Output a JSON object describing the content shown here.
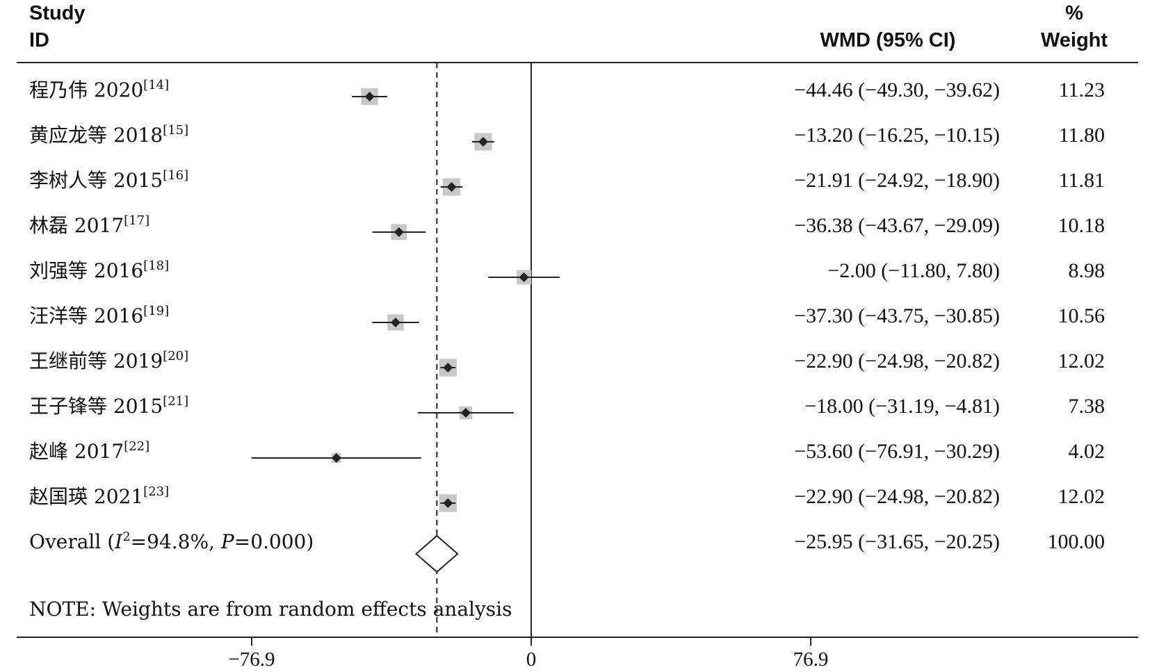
{
  "chart_data": {
    "type": "forest",
    "headers": {
      "study_line1": "Study",
      "study_line2": "ID",
      "effect": "WMD (95% CI)",
      "weight_line1": "%",
      "weight_line2": "Weight"
    },
    "studies": [
      {
        "label": "程乃伟 2020",
        "ref": "[14]",
        "wmd": -44.46,
        "lo": -49.3,
        "hi": -39.62,
        "ci_text": "−44.46 (−49.30, −39.62)",
        "weight": "11.23"
      },
      {
        "label": "黄应龙等 2018",
        "ref": "[15]",
        "wmd": -13.2,
        "lo": -16.25,
        "hi": -10.15,
        "ci_text": "−13.20 (−16.25, −10.15)",
        "weight": "11.80"
      },
      {
        "label": "李树人等 2015",
        "ref": "[16]",
        "wmd": -21.91,
        "lo": -24.92,
        "hi": -18.9,
        "ci_text": "−21.91 (−24.92, −18.90)",
        "weight": "11.81"
      },
      {
        "label": "林磊 2017",
        "ref": "[17]",
        "wmd": -36.38,
        "lo": -43.67,
        "hi": -29.09,
        "ci_text": "−36.38 (−43.67, −29.09)",
        "weight": "10.18"
      },
      {
        "label": "刘强等 2016",
        "ref": "[18]",
        "wmd": -2.0,
        "lo": -11.8,
        "hi": 7.8,
        "ci_text": "−2.00 (−11.80, 7.80)",
        "weight": "8.98"
      },
      {
        "label": "汪洋等 2016",
        "ref": "[19]",
        "wmd": -37.3,
        "lo": -43.75,
        "hi": -30.85,
        "ci_text": "−37.30 (−43.75, −30.85)",
        "weight": "10.56"
      },
      {
        "label": "王继前等 2019",
        "ref": "[20]",
        "wmd": -22.9,
        "lo": -24.98,
        "hi": -20.82,
        "ci_text": "−22.90 (−24.98, −20.82)",
        "weight": "12.02"
      },
      {
        "label": "王子锋等 2015",
        "ref": "[21]",
        "wmd": -18.0,
        "lo": -31.19,
        "hi": -4.81,
        "ci_text": "−18.00 (−31.19, −4.81)",
        "weight": "7.38"
      },
      {
        "label": "赵峰 2017",
        "ref": "[22]",
        "wmd": -53.6,
        "lo": -76.91,
        "hi": -30.29,
        "ci_text": "−53.60 (−76.91, −30.29)",
        "weight": "4.02"
      },
      {
        "label": "赵国瑛 2021",
        "ref": "[23]",
        "wmd": -22.9,
        "lo": -24.98,
        "hi": -20.82,
        "ci_text": "−22.90 (−24.98, −20.82)",
        "weight": "12.02"
      }
    ],
    "overall": {
      "label": "Overall",
      "i2_text": "=94.8%, ",
      "p_text": "=0.000)",
      "wmd": -25.95,
      "lo": -31.65,
      "hi": -20.25,
      "ci_text": "−25.95 (−31.65, −20.25)",
      "weight": "100.00"
    },
    "note": "NOTE: Weights are from random effects analysis",
    "x_range": [
      -76.9,
      76.9
    ],
    "ticks": [
      {
        "value": -76.9,
        "label": "−76.9"
      },
      {
        "value": 0,
        "label": "0"
      },
      {
        "value": 76.9,
        "label": "76.9"
      }
    ],
    "reference_line": 0,
    "colors": {
      "marker": "#c8c8c8",
      "point": "#222222",
      "line": "#222222"
    }
  }
}
